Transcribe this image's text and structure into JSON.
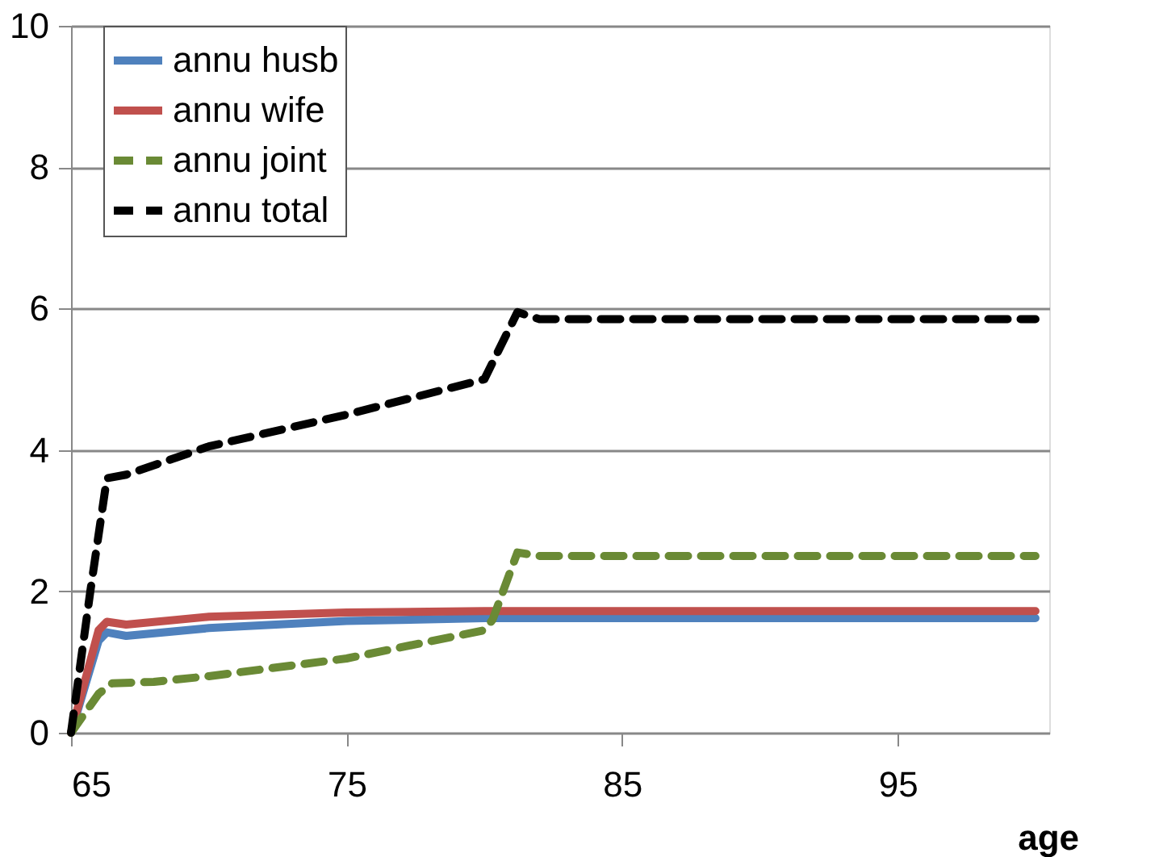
{
  "chart_data": {
    "type": "line",
    "xlabel": "age",
    "xlim": [
      65,
      100.5
    ],
    "xticks": [
      65,
      75,
      85,
      95
    ],
    "ylim": [
      0,
      10
    ],
    "yticks": [
      0,
      2,
      4,
      6,
      8,
      10
    ],
    "grid": "y",
    "legend": "top left",
    "series": [
      {
        "name": "annu husb",
        "color": "#4f81bd",
        "line_style": "solid",
        "x": [
          65,
          66,
          66.3,
          67,
          70,
          75,
          80,
          100
        ],
        "values": [
          0,
          1.3,
          1.42,
          1.37,
          1.48,
          1.58,
          1.62,
          1.62
        ]
      },
      {
        "name": "annu wife",
        "color": "#c0504d",
        "line_style": "solid",
        "x": [
          65,
          66,
          66.3,
          67,
          70,
          75,
          80,
          100
        ],
        "values": [
          0,
          1.45,
          1.57,
          1.53,
          1.64,
          1.7,
          1.72,
          1.72
        ]
      },
      {
        "name": "annu joint",
        "color": "#6a8a35",
        "line_style": "dashed",
        "x": [
          65,
          66,
          66.5,
          68,
          70,
          75,
          80,
          80.3,
          81.2,
          82,
          100
        ],
        "values": [
          0,
          0.55,
          0.7,
          0.72,
          0.8,
          1.05,
          1.45,
          1.6,
          2.55,
          2.5,
          2.5
        ]
      },
      {
        "name": "annu total",
        "color": "#000000",
        "line_style": "dashed",
        "x": [
          65,
          65.7,
          66.3,
          67,
          70,
          75,
          80,
          81.2,
          82,
          100
        ],
        "values": [
          0,
          2.0,
          3.6,
          3.65,
          4.05,
          4.5,
          5.0,
          5.95,
          5.85,
          5.85
        ]
      }
    ]
  }
}
